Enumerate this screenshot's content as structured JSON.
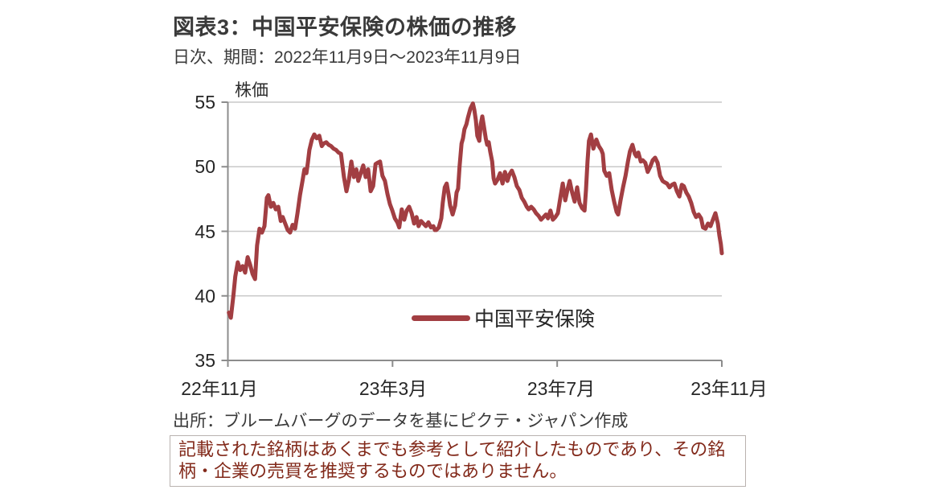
{
  "header": {
    "title": "図表3：中国平安保険の株価の推移",
    "subtitle": "日次、期間：2022年11月9日～2023年11月9日"
  },
  "chart": {
    "y_axis_label": "株価",
    "legend": {
      "label": "中国平安保険"
    },
    "colors": {
      "line": "#A23E42",
      "grid": "#c9c9c9",
      "axis": "#8c8c8c",
      "tick_text": "#262626"
    }
  },
  "footer": {
    "source": "出所：ブルームバーグのデータを基にピクテ・ジャパン作成",
    "disclaimer_lines": [
      "記載された銘柄はあくまでも参考として紹介したものであり、その銘",
      "柄・企業の売買を推奨するものではありません。"
    ],
    "disclaimer_color": "#82291a"
  },
  "chart_data": {
    "type": "line",
    "title": "図表3：中国平安保険の株価の推移",
    "period": "2022年11月9日～2023年11月9日（日次）",
    "ylabel": "株価",
    "ylim": [
      35,
      55
    ],
    "y_ticks": [
      55,
      50,
      45,
      40,
      35
    ],
    "x_ticks": [
      "22年11月",
      "23年3月",
      "23年7月",
      "23年11月"
    ],
    "grid": "horizontal",
    "legend_position": "inside-bottom-center",
    "series": [
      {
        "name": "中国平安保険",
        "color": "#A23E42",
        "x_unit": "fraction of period 2022-11-09 to 2023-11-09",
        "points": [
          [
            0.002,
            38.7
          ],
          [
            0.006,
            38.3
          ],
          [
            0.011,
            40.0
          ],
          [
            0.015,
            41.5
          ],
          [
            0.02,
            42.6
          ],
          [
            0.025,
            42.0
          ],
          [
            0.03,
            42.3
          ],
          [
            0.035,
            41.8
          ],
          [
            0.04,
            43.0
          ],
          [
            0.045,
            42.4
          ],
          [
            0.05,
            41.7
          ],
          [
            0.055,
            41.3
          ],
          [
            0.059,
            43.9
          ],
          [
            0.064,
            45.2
          ],
          [
            0.069,
            44.9
          ],
          [
            0.074,
            45.4
          ],
          [
            0.079,
            47.6
          ],
          [
            0.082,
            47.8
          ],
          [
            0.087,
            46.9
          ],
          [
            0.092,
            47.2
          ],
          [
            0.097,
            46.7
          ],
          [
            0.102,
            46.9
          ],
          [
            0.107,
            45.8
          ],
          [
            0.111,
            46.1
          ],
          [
            0.116,
            45.6
          ],
          [
            0.121,
            45.1
          ],
          [
            0.126,
            44.9
          ],
          [
            0.131,
            45.5
          ],
          [
            0.136,
            45.2
          ],
          [
            0.141,
            46.4
          ],
          [
            0.146,
            47.8
          ],
          [
            0.151,
            48.9
          ],
          [
            0.155,
            49.8
          ],
          [
            0.159,
            49.5
          ],
          [
            0.162,
            50.3
          ],
          [
            0.165,
            51.3
          ],
          [
            0.17,
            52.1
          ],
          [
            0.175,
            52.5
          ],
          [
            0.18,
            52.2
          ],
          [
            0.185,
            52.4
          ],
          [
            0.19,
            51.6
          ],
          [
            0.194,
            51.8
          ],
          [
            0.199,
            51.9
          ],
          [
            0.204,
            51.7
          ],
          [
            0.209,
            51.6
          ],
          [
            0.214,
            51.4
          ],
          [
            0.219,
            51.3
          ],
          [
            0.224,
            51.1
          ],
          [
            0.229,
            51.0
          ],
          [
            0.235,
            49.2
          ],
          [
            0.24,
            48.1
          ],
          [
            0.245,
            49.0
          ],
          [
            0.25,
            50.4
          ],
          [
            0.255,
            49.2
          ],
          [
            0.26,
            49.8
          ],
          [
            0.264,
            48.9
          ],
          [
            0.269,
            49.5
          ],
          [
            0.274,
            50.1
          ],
          [
            0.279,
            49.2
          ],
          [
            0.284,
            49.8
          ],
          [
            0.289,
            48.1
          ],
          [
            0.294,
            48.5
          ],
          [
            0.299,
            50.2
          ],
          [
            0.303,
            50.3
          ],
          [
            0.308,
            50.4
          ],
          [
            0.313,
            49.3
          ],
          [
            0.318,
            48.9
          ],
          [
            0.323,
            47.9
          ],
          [
            0.328,
            47.1
          ],
          [
            0.333,
            46.6
          ],
          [
            0.338,
            46.0
          ],
          [
            0.343,
            45.7
          ],
          [
            0.347,
            45.3
          ],
          [
            0.352,
            46.7
          ],
          [
            0.357,
            45.9
          ],
          [
            0.362,
            46.6
          ],
          [
            0.367,
            46.9
          ],
          [
            0.372,
            46.4
          ],
          [
            0.377,
            45.6
          ],
          [
            0.382,
            46.1
          ],
          [
            0.386,
            45.4
          ],
          [
            0.391,
            45.8
          ],
          [
            0.396,
            45.6
          ],
          [
            0.401,
            45.4
          ],
          [
            0.406,
            45.7
          ],
          [
            0.411,
            45.3
          ],
          [
            0.416,
            45.4
          ],
          [
            0.419,
            45.1
          ],
          [
            0.422,
            45.1
          ],
          [
            0.427,
            45.3
          ],
          [
            0.432,
            46.0
          ],
          [
            0.435,
            47.2
          ],
          [
            0.439,
            48.4
          ],
          [
            0.443,
            48.7
          ],
          [
            0.447,
            47.8
          ],
          [
            0.45,
            47.0
          ],
          [
            0.455,
            46.3
          ],
          [
            0.46,
            47.0
          ],
          [
            0.463,
            48.0
          ],
          [
            0.466,
            48.3
          ],
          [
            0.469,
            50.0
          ],
          [
            0.473,
            51.8
          ],
          [
            0.476,
            52.2
          ],
          [
            0.479,
            52.9
          ],
          [
            0.483,
            53.3
          ],
          [
            0.486,
            53.8
          ],
          [
            0.491,
            54.5
          ],
          [
            0.496,
            54.9
          ],
          [
            0.499,
            54.4
          ],
          [
            0.502,
            53.6
          ],
          [
            0.505,
            52.4
          ],
          [
            0.509,
            52.0
          ],
          [
            0.512,
            53.3
          ],
          [
            0.515,
            53.9
          ],
          [
            0.518,
            53.2
          ],
          [
            0.522,
            52.2
          ],
          [
            0.525,
            51.7
          ],
          [
            0.528,
            51.9
          ],
          [
            0.531,
            51.2
          ],
          [
            0.535,
            50.4
          ],
          [
            0.538,
            49.1
          ],
          [
            0.541,
            48.7
          ],
          [
            0.546,
            49.0
          ],
          [
            0.551,
            49.5
          ],
          [
            0.556,
            48.7
          ],
          [
            0.561,
            49.6
          ],
          [
            0.566,
            48.9
          ],
          [
            0.57,
            49.4
          ],
          [
            0.575,
            49.7
          ],
          [
            0.58,
            49.2
          ],
          [
            0.585,
            48.5
          ],
          [
            0.59,
            48.2
          ],
          [
            0.595,
            47.6
          ],
          [
            0.6,
            47.3
          ],
          [
            0.605,
            46.9
          ],
          [
            0.609,
            46.7
          ],
          [
            0.614,
            46.9
          ],
          [
            0.619,
            46.7
          ],
          [
            0.624,
            46.4
          ],
          [
            0.629,
            46.2
          ],
          [
            0.634,
            45.9
          ],
          [
            0.639,
            46.1
          ],
          [
            0.644,
            46.3
          ],
          [
            0.648,
            46.0
          ],
          [
            0.653,
            46.6
          ],
          [
            0.658,
            45.9
          ],
          [
            0.663,
            46.1
          ],
          [
            0.668,
            46.4
          ],
          [
            0.673,
            47.6
          ],
          [
            0.678,
            48.7
          ],
          [
            0.683,
            47.4
          ],
          [
            0.688,
            48.3
          ],
          [
            0.692,
            48.9
          ],
          [
            0.697,
            48.0
          ],
          [
            0.702,
            47.3
          ],
          [
            0.707,
            48.4
          ],
          [
            0.712,
            47.2
          ],
          [
            0.717,
            46.8
          ],
          [
            0.722,
            46.6
          ],
          [
            0.725,
            48.2
          ],
          [
            0.728,
            50.4
          ],
          [
            0.731,
            52.0
          ],
          [
            0.735,
            52.5
          ],
          [
            0.74,
            51.4
          ],
          [
            0.743,
            51.8
          ],
          [
            0.746,
            52.1
          ],
          [
            0.751,
            51.6
          ],
          [
            0.756,
            51.3
          ],
          [
            0.759,
            51.0
          ],
          [
            0.762,
            49.7
          ],
          [
            0.767,
            49.3
          ],
          [
            0.772,
            49.5
          ],
          [
            0.777,
            48.2
          ],
          [
            0.782,
            47.3
          ],
          [
            0.787,
            46.5
          ],
          [
            0.79,
            46.3
          ],
          [
            0.795,
            47.4
          ],
          [
            0.8,
            48.4
          ],
          [
            0.805,
            49.3
          ],
          [
            0.81,
            50.4
          ],
          [
            0.814,
            51.2
          ],
          [
            0.819,
            51.7
          ],
          [
            0.824,
            51.0
          ],
          [
            0.827,
            50.8
          ],
          [
            0.831,
            51.1
          ],
          [
            0.836,
            50.4
          ],
          [
            0.84,
            50.5
          ],
          [
            0.845,
            50.3
          ],
          [
            0.85,
            49.6
          ],
          [
            0.855,
            50.0
          ],
          [
            0.86,
            50.5
          ],
          [
            0.865,
            50.7
          ],
          [
            0.87,
            50.3
          ],
          [
            0.875,
            49.3
          ],
          [
            0.88,
            48.9
          ],
          [
            0.884,
            48.8
          ],
          [
            0.889,
            48.7
          ],
          [
            0.894,
            48.4
          ],
          [
            0.899,
            48.6
          ],
          [
            0.904,
            48.7
          ],
          [
            0.909,
            48.1
          ],
          [
            0.914,
            47.7
          ],
          [
            0.919,
            48.6
          ],
          [
            0.923,
            48.5
          ],
          [
            0.928,
            48.0
          ],
          [
            0.933,
            47.7
          ],
          [
            0.938,
            47.2
          ],
          [
            0.943,
            46.5
          ],
          [
            0.948,
            46.1
          ],
          [
            0.953,
            46.3
          ],
          [
            0.958,
            46.0
          ],
          [
            0.962,
            45.3
          ],
          [
            0.967,
            45.2
          ],
          [
            0.972,
            45.6
          ],
          [
            0.977,
            45.4
          ],
          [
            0.982,
            45.9
          ],
          [
            0.987,
            46.4
          ],
          [
            0.992,
            45.6
          ],
          [
            0.995,
            44.7
          ],
          [
            0.998,
            44.0
          ],
          [
            1.0,
            43.3
          ]
        ]
      }
    ]
  }
}
